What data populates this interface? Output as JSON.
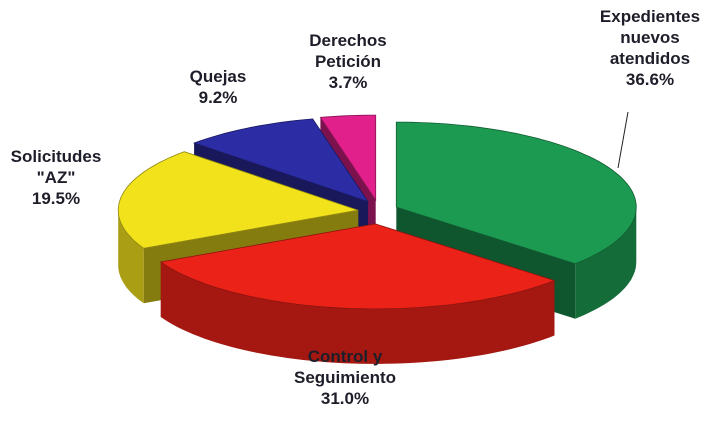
{
  "chart_data": {
    "type": "pie3d",
    "categories": [
      "Expedientes nuevos atendidos",
      "Control y Seguimiento",
      "Solicitudes \"AZ\"",
      "Quejas",
      "Derechos Petición"
    ],
    "values": [
      36.6,
      31.0,
      19.5,
      9.2,
      3.7
    ],
    "value_labels": [
      "36.6%",
      "31.0%",
      "19.5%",
      "9.2%",
      "3.7%"
    ],
    "colors": [
      "#1c9a52",
      "#ea2218",
      "#f2e21c",
      "#2c2ca4",
      "#e2208c"
    ]
  }
}
